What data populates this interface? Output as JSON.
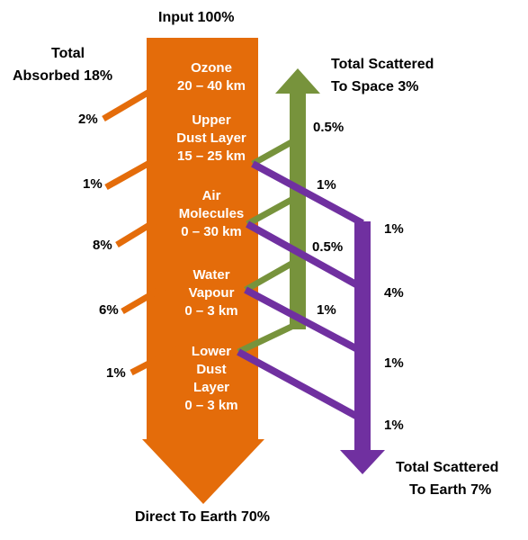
{
  "title_input": "Input 100%",
  "title_bottom": "Direct To Earth 70%",
  "total_absorbed": [
    "Total",
    "Absorbed 18%"
  ],
  "total_space": [
    "Total Scattered",
    "To Space 3%"
  ],
  "total_earth": [
    "Total Scattered",
    "To Earth 7%"
  ],
  "layers": [
    [
      "Ozone",
      "20 – 40 km"
    ],
    [
      "Upper",
      "Dust Layer",
      "15 – 25 km"
    ],
    [
      "Air",
      "Molecules",
      "0 – 30 km"
    ],
    [
      "Water",
      "Vapour",
      "0 – 3 km"
    ],
    [
      "Lower",
      "Dust",
      "Layer",
      "0 – 3 km"
    ]
  ],
  "absorbed": [
    "2%",
    "1%",
    "8%",
    "6%",
    "1%"
  ],
  "scattered_space": [
    "0.5%",
    "1%",
    "0.5%",
    "1%"
  ],
  "scattered_earth": [
    "1%",
    "4%",
    "1%",
    "1%"
  ],
  "colors": {
    "main": "#e46c0a",
    "space": "#77933c",
    "earth": "#7030a0"
  }
}
